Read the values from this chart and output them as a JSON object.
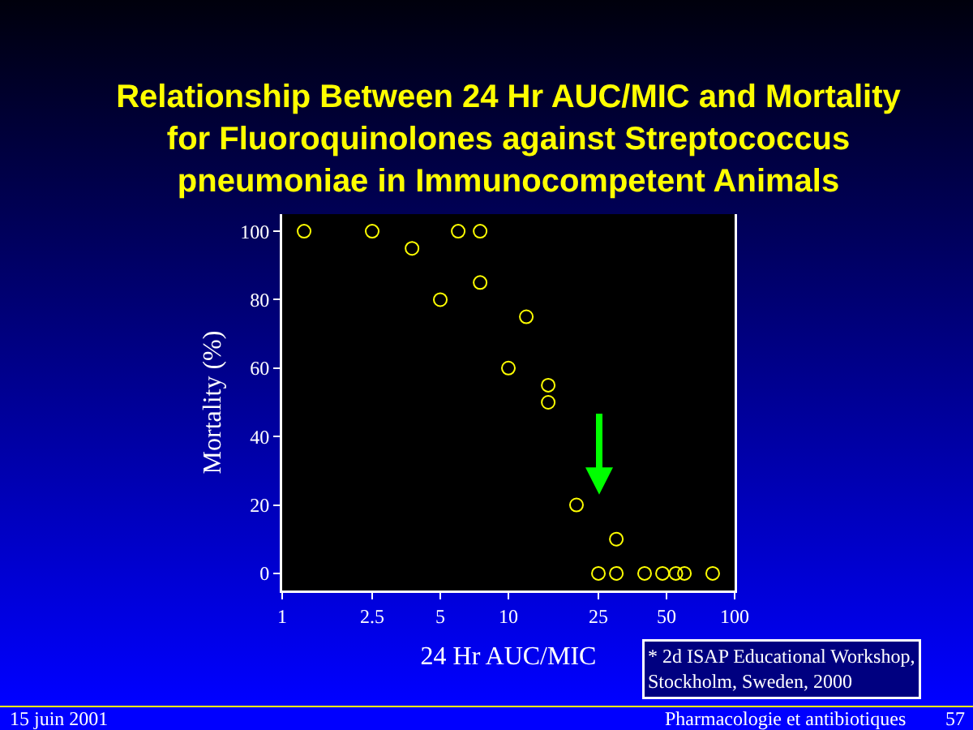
{
  "chart_data": {
    "type": "scatter",
    "title": "Relationship Between 24 Hr AUC/MIC and Mortality for Fluoroquinolones against Streptococcus pneumoniae in Immunocompetent Animals",
    "xlabel": "24 Hr AUC/MIC",
    "ylabel": "Mortality (%)",
    "x": [
      1.25,
      2.5,
      3.75,
      5,
      6,
      7.5,
      7.5,
      10,
      12,
      15,
      15,
      20,
      25,
      30,
      30,
      40,
      48,
      55,
      60,
      80
    ],
    "values": [
      100,
      100,
      95,
      80,
      100,
      100,
      85,
      60,
      75,
      55,
      50,
      20,
      0,
      10,
      0,
      0,
      0,
      0,
      0,
      0
    ],
    "color": "#ffff00",
    "marker": "circle",
    "log": "x",
    "xlim": [
      1,
      100
    ],
    "xticks": [
      1,
      2.5,
      5,
      10,
      25,
      50,
      100
    ],
    "ylim": [
      -5,
      105
    ],
    "yticks": [
      0,
      20,
      40,
      60,
      80,
      100
    ],
    "annotations": [
      "* 2d ISAP Educational Workshop, Stockholm, Sweden, 2000",
      "15 juin 2001",
      "Pharmacologie et antibiotiques",
      "57"
    ]
  }
}
